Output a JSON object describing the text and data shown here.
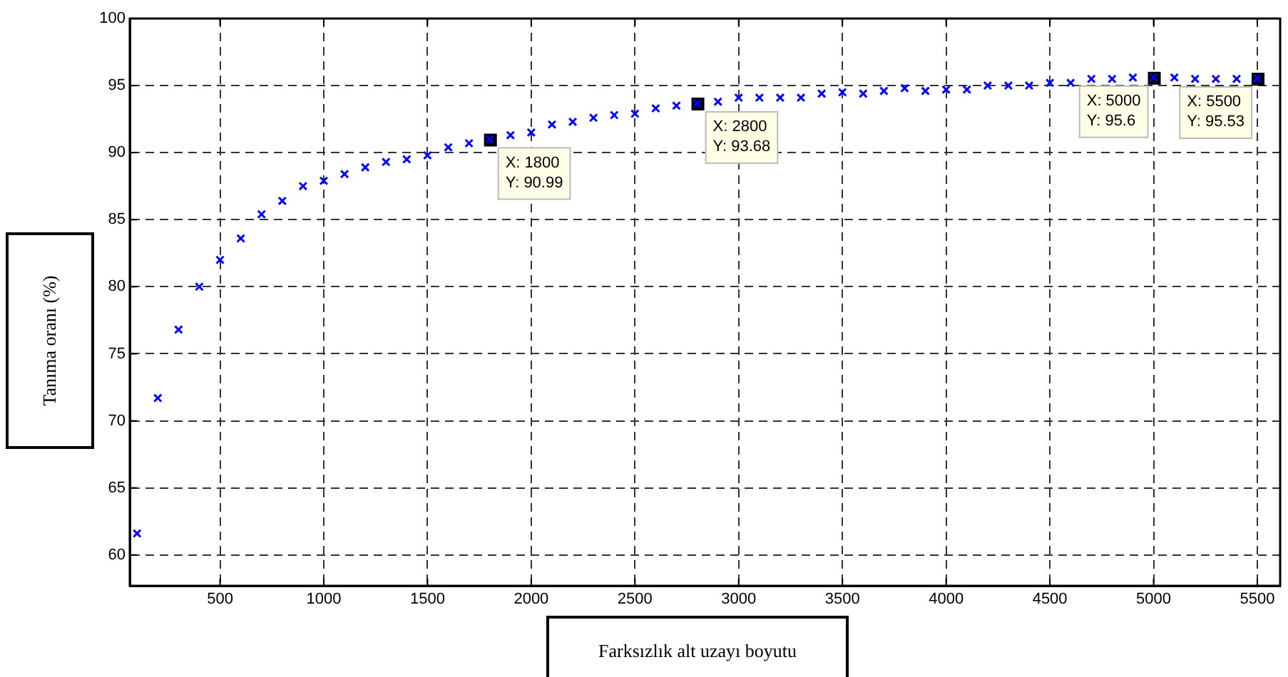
{
  "chart_data": {
    "type": "scatter",
    "xlabel": "Farksızlık alt uzayı boyutu",
    "ylabel": "Tanıma oranı (%)",
    "x": [
      100,
      200,
      300,
      400,
      500,
      600,
      700,
      800,
      900,
      1000,
      1100,
      1200,
      1300,
      1400,
      1500,
      1600,
      1700,
      1800,
      1900,
      2000,
      2100,
      2200,
      2300,
      2400,
      2500,
      2600,
      2700,
      2800,
      2900,
      3000,
      3100,
      3200,
      3300,
      3400,
      3500,
      3600,
      3700,
      3800,
      3900,
      4000,
      4100,
      4200,
      4300,
      4400,
      4500,
      4600,
      4700,
      4800,
      4900,
      5000,
      5100,
      5200,
      5300,
      5400,
      5500
    ],
    "series": [
      {
        "color": "#0000ff",
        "values": [
          61.6,
          71.7,
          76.8,
          80.0,
          82.0,
          83.6,
          85.4,
          86.4,
          87.5,
          87.9,
          88.4,
          88.9,
          89.3,
          89.5,
          89.8,
          90.4,
          90.7,
          90.99,
          91.3,
          91.5,
          92.1,
          92.3,
          92.6,
          92.8,
          92.9,
          93.3,
          93.5,
          93.68,
          93.8,
          94.1,
          94.1,
          94.1,
          94.1,
          94.4,
          94.5,
          94.4,
          94.6,
          94.8,
          94.6,
          94.7,
          94.7,
          95.0,
          95.0,
          95.0,
          95.2,
          95.2,
          95.5,
          95.5,
          95.6,
          95.6,
          95.6,
          95.5,
          95.5,
          95.5,
          95.53
        ]
      }
    ],
    "marker": "cross",
    "grid": true,
    "legend": false,
    "xlim": [
      65,
      5610
    ],
    "xticks": [
      500,
      1000,
      1500,
      2000,
      2500,
      3000,
      3500,
      4000,
      4500,
      5000,
      5500
    ],
    "ylim": [
      57.7,
      100
    ],
    "yticks": [
      60,
      65,
      70,
      75,
      80,
      85,
      90,
      95,
      100
    ],
    "annotations": [
      {
        "text": "X: 1800\nY: 90.99",
        "x": 1800,
        "y": 90.99
      },
      {
        "text": "X: 2800\nY: 93.68",
        "x": 2800,
        "y": 93.68
      },
      {
        "text": "X: 5000\nY: 95.6",
        "x": 5000,
        "y": 95.6
      },
      {
        "text": "X: 5500\nY: 95.53",
        "x": 5500,
        "y": 95.53
      }
    ]
  }
}
